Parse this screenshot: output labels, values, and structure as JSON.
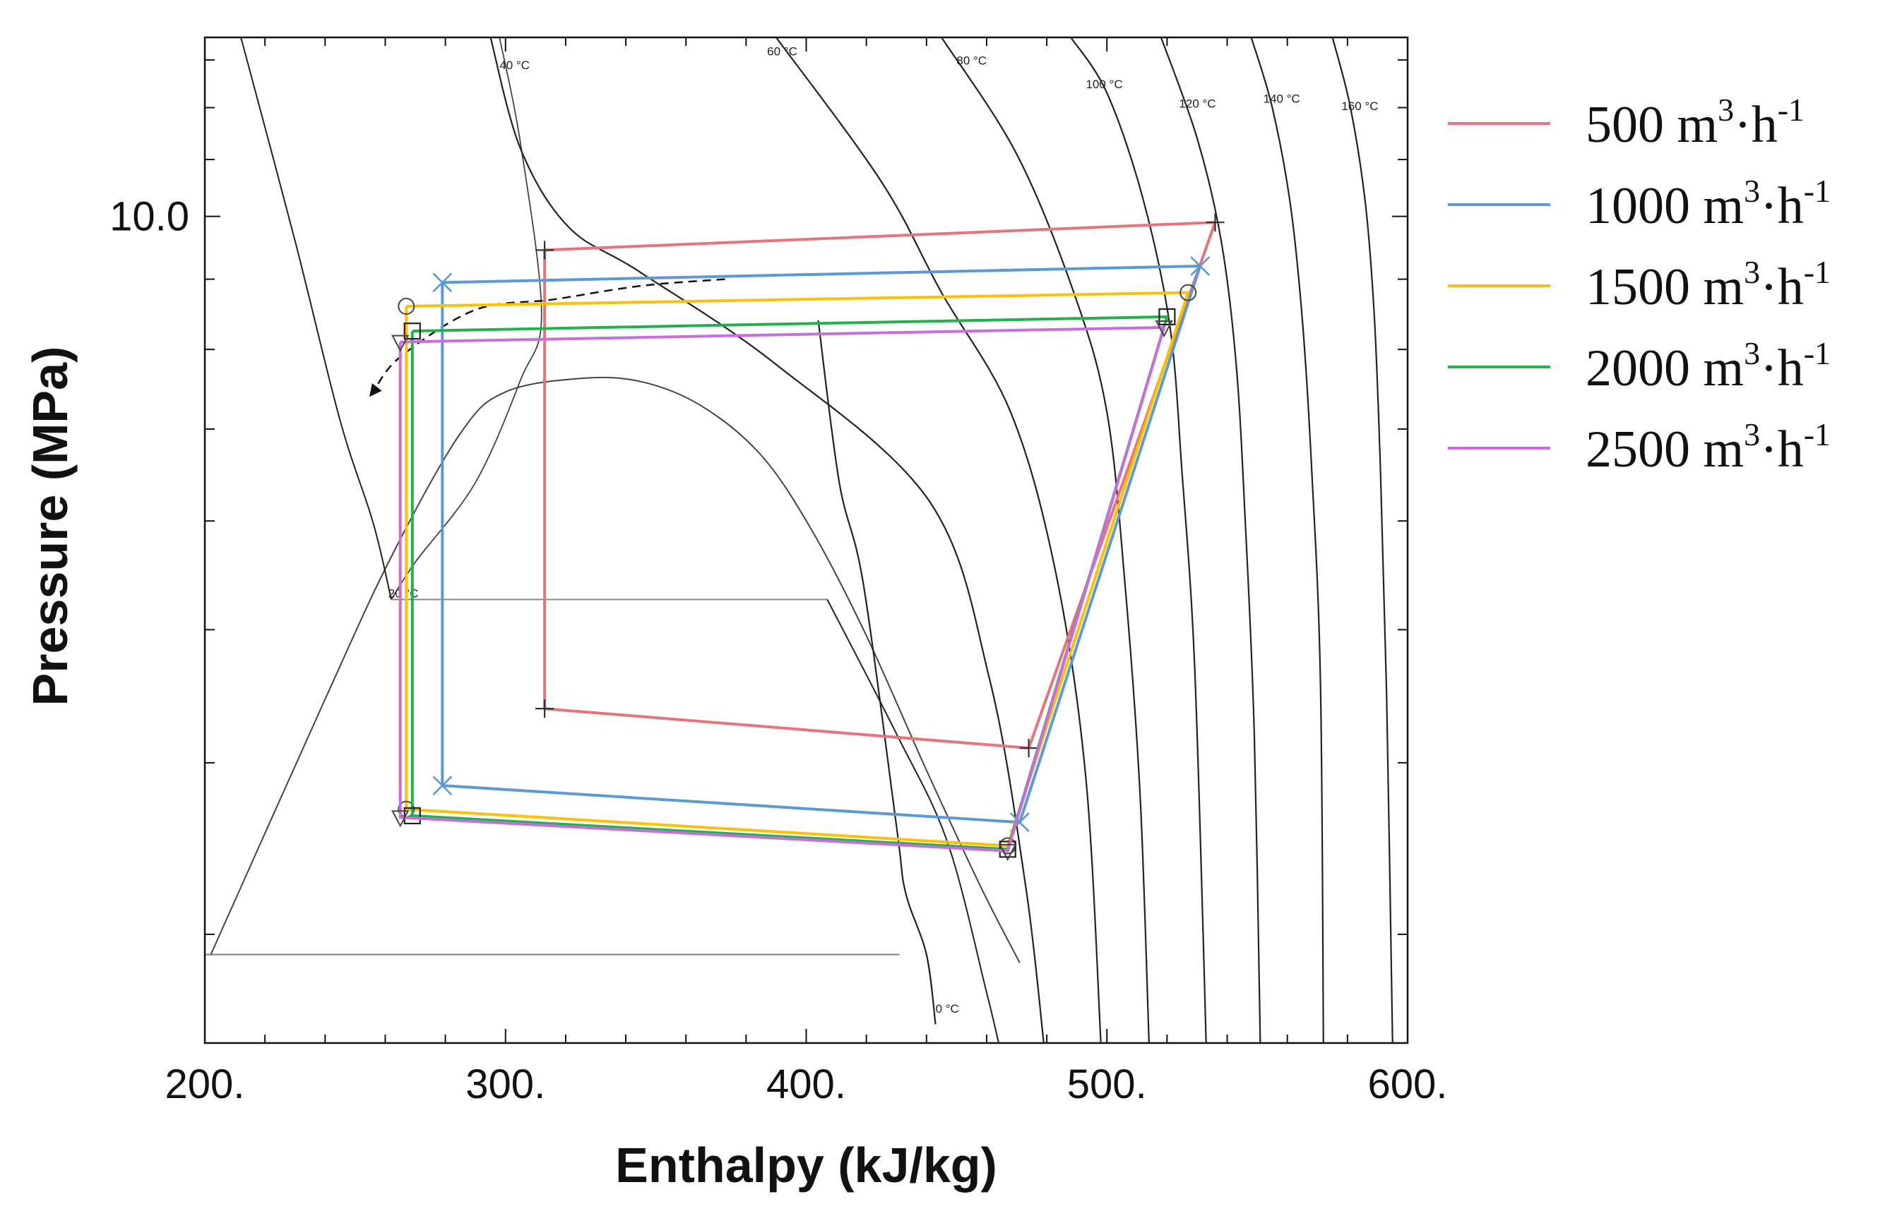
{
  "chart_data": {
    "type": "line",
    "title": "",
    "xlabel": "Enthalpy (kJ/kg)",
    "ylabel": "Pressure (MPa)",
    "xlim": [
      200,
      600
    ],
    "x_scale": "linear",
    "y_scale": "log",
    "ylim": [
      2.5,
      13.5
    ],
    "x_ticks": [
      {
        "value": 200,
        "label": "200."
      },
      {
        "value": 300,
        "label": "300."
      },
      {
        "value": 400,
        "label": "400."
      },
      {
        "value": 500,
        "label": "500."
      },
      {
        "value": 600,
        "label": "600."
      }
    ],
    "y_ticks": [
      {
        "value": 10.0,
        "label": "10.0"
      }
    ],
    "legend_position": "right",
    "series": [
      {
        "name": "500 m³·h⁻¹",
        "label_main": "500 m",
        "label_unit": "·h",
        "label_sup1": "3",
        "label_sup2": "-1",
        "color": "#e8737a",
        "marker": "plus",
        "points": [
          [
            313,
            9.45
          ],
          [
            536,
            9.9
          ],
          [
            474,
            4.1
          ],
          [
            313,
            4.38
          ],
          [
            313,
            9.45
          ]
        ]
      },
      {
        "name": "1000 m³·h⁻¹",
        "label_main": "1000 m",
        "label_unit": "·h",
        "label_sup1": "3",
        "label_sup2": "-1",
        "color": "#5b9bd5",
        "marker": "x",
        "points": [
          [
            279,
            8.95
          ],
          [
            531,
            9.2
          ],
          [
            471,
            3.62
          ],
          [
            279,
            3.85
          ],
          [
            279,
            8.95
          ]
        ]
      },
      {
        "name": "1500 m³·h⁻¹",
        "label_main": "1500 m",
        "label_unit": "·h",
        "label_sup1": "3",
        "label_sup2": "-1",
        "color": "#ffc000",
        "marker": "circle",
        "points": [
          [
            267,
            8.6
          ],
          [
            527,
            8.8
          ],
          [
            467,
            3.48
          ],
          [
            267,
            3.7
          ],
          [
            267,
            8.6
          ]
        ]
      },
      {
        "name": "2000 m³·h⁻¹",
        "label_main": "2000 m",
        "label_unit": "·h",
        "label_sup1": "3",
        "label_sup2": "-1",
        "color": "#22b14c",
        "marker": "square",
        "points": [
          [
            269,
            8.25
          ],
          [
            520,
            8.45
          ],
          [
            467,
            3.46
          ],
          [
            269,
            3.66
          ],
          [
            269,
            8.25
          ]
        ]
      },
      {
        "name": "2500 m³·h⁻¹",
        "label_main": "2500 m",
        "label_unit": "·h",
        "label_sup1": "3",
        "label_sup2": "-1",
        "color": "#c86ddf",
        "marker": "triangle",
        "points": [
          [
            265,
            8.1
          ],
          [
            519,
            8.3
          ],
          [
            467,
            3.45
          ],
          [
            265,
            3.65
          ],
          [
            265,
            8.1
          ]
        ]
      }
    ],
    "background": {
      "saturation_dome": [
        [
          202,
          2.9
        ],
        [
          240,
          4.45
        ],
        [
          262,
          5.65
        ],
        [
          285,
          6.95
        ],
        [
          300,
          7.45
        ],
        [
          325,
          7.62
        ],
        [
          345,
          7.58
        ],
        [
          365,
          7.28
        ],
        [
          385,
          6.7
        ],
        [
          402,
          5.9
        ],
        [
          420,
          4.95
        ],
        [
          440,
          3.95
        ],
        [
          458,
          3.25
        ],
        [
          471,
          2.86
        ]
      ],
      "isotherms": [
        {
          "label": "0 °C",
          "label_at": [
            443,
            2.63
          ],
          "points": [
            [
              404,
              8.4
            ],
            [
              411,
              6.4
            ],
            [
              419,
              5.4
            ],
            [
              430,
              3.6
            ],
            [
              433,
              3.22
            ],
            [
              440,
              2.9
            ],
            [
              443,
              2.58
            ]
          ]
        },
        {
          "label": "20 °C",
          "label_at": [
            261,
            5.28
          ],
          "points": [
            [
              212,
              13.5
            ],
            [
              230,
              9.6
            ],
            [
              245,
              7.1
            ],
            [
              256,
              5.98
            ],
            [
              262,
              5.26
            ],
            [
              407,
              5.26
            ],
            [
              430,
              4.2
            ],
            [
              447,
              3.5
            ],
            [
              460,
              2.72
            ],
            [
              464,
              2.5
            ]
          ]
        },
        {
          "label": "40 °C",
          "label_at": [
            298,
            12.8
          ],
          "points": [
            [
              295,
              13.5
            ],
            [
              305,
              11.2
            ],
            [
              321,
              9.82
            ],
            [
              345,
              9.1
            ],
            [
              390,
              7.8
            ],
            [
              441,
              6.2
            ],
            [
              461,
              4.6
            ],
            [
              473,
              3.25
            ],
            [
              479,
              2.5
            ]
          ]
        },
        {
          "label": "60 °C",
          "label_at": [
            387,
            13.1
          ],
          "points": [
            [
              390,
              13.5
            ],
            [
              425,
              10.6
            ],
            [
              445,
              8.8
            ],
            [
              468,
              7.2
            ],
            [
              483,
              5.5
            ],
            [
              493,
              3.9
            ],
            [
              498,
              2.5
            ]
          ]
        },
        {
          "label": "80 °C",
          "label_at": [
            450,
            12.9
          ],
          "points": [
            [
              445,
              13.5
            ],
            [
              470,
              11.1
            ],
            [
              489,
              8.8
            ],
            [
              500,
              7.2
            ],
            [
              506,
              5.4
            ],
            [
              511,
              3.8
            ],
            [
              514,
              2.5
            ]
          ]
        },
        {
          "label": "100 °C",
          "label_at": [
            493,
            12.4
          ],
          "points": [
            [
              488,
              13.5
            ],
            [
              500,
              12.3
            ],
            [
              512,
              10.3
            ],
            [
              521,
              8.3
            ],
            [
              525,
              6.5
            ],
            [
              529,
              4.8
            ],
            [
              532,
              3.0
            ],
            [
              533,
              2.5
            ]
          ]
        },
        {
          "label": "120 °C",
          "label_at": [
            524,
            12.0
          ],
          "points": [
            [
              518,
              13.5
            ],
            [
              530,
              11.4
            ],
            [
              538,
              9.6
            ],
            [
              543,
              7.8
            ],
            [
              546,
              6.0
            ],
            [
              549,
              4.2
            ],
            [
              551,
              2.5
            ]
          ]
        },
        {
          "label": "140 °C",
          "label_at": [
            552,
            12.1
          ],
          "points": [
            [
              548,
              13.5
            ],
            [
              555,
              12.0
            ],
            [
              561,
              10.2
            ],
            [
              565,
              8.4
            ],
            [
              568,
              6.6
            ],
            [
              571,
              4.6
            ],
            [
              572,
              2.5
            ]
          ]
        },
        {
          "label": "160 °C",
          "label_at": [
            578,
            11.95
          ],
          "points": [
            [
              575,
              13.5
            ],
            [
              581,
              12.0
            ],
            [
              586,
              10.2
            ],
            [
              589,
              8.4
            ],
            [
              591,
              6.5
            ],
            [
              593,
              4.5
            ],
            [
              595,
              2.5
            ]
          ]
        }
      ],
      "quality_lines": [
        {
          "points": [
            [
              298,
              13.5
            ],
            [
              305,
              11.3
            ],
            [
              312,
              8.5
            ],
            [
              305,
              7.6
            ],
            [
              290,
              6.4
            ],
            [
              270,
              5.6
            ],
            [
              262,
              5.26
            ]
          ]
        }
      ],
      "arrow_path": [
        [
          373,
          9.0
        ],
        [
          345,
          8.9
        ],
        [
          316,
          8.7
        ],
        [
          290,
          8.55
        ],
        [
          265,
          7.9
        ],
        [
          256,
          7.45
        ]
      ],
      "reference_line": [
        [
          200,
          2.9
        ],
        [
          431,
          2.9
        ]
      ]
    }
  }
}
